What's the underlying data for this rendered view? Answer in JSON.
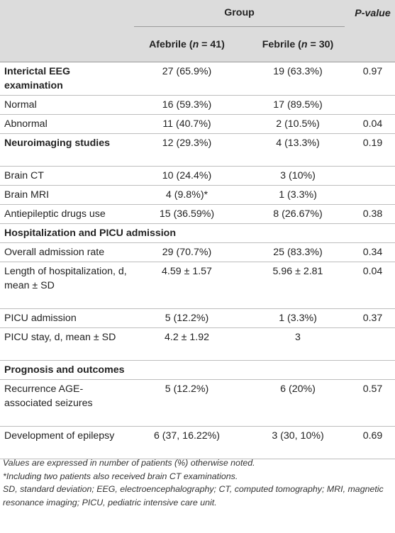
{
  "header": {
    "group": "Group",
    "pvalue": "P-value",
    "afebrile_pre": "Afebrile (",
    "afebrile_n": "n",
    "afebrile_post": " = 41)",
    "febrile_pre": "Febrile (",
    "febrile_n": "n",
    "febrile_post": " = 30)"
  },
  "rows": [
    {
      "label": "Interictal EEG examination",
      "bold": true,
      "afebrile": "27 (65.9%)",
      "febrile": "19 (63.3%)",
      "p": "0.97",
      "h": 46
    },
    {
      "label": "Normal",
      "bold": false,
      "afebrile": "16 (59.3%)",
      "febrile": "17 (89.5%)",
      "p": "",
      "h": 26
    },
    {
      "label": "Abnormal",
      "bold": false,
      "afebrile": "11 (40.7%)",
      "febrile": "2 (10.5%)",
      "p": "0.04",
      "h": 26
    },
    {
      "label": "Neuroimaging studies",
      "bold": true,
      "afebrile": "12 (29.3%)",
      "febrile": "4 (13.3%)",
      "p": "0.19",
      "h": 46
    },
    {
      "label": "Brain CT",
      "bold": false,
      "afebrile": "10 (24.4%)",
      "febrile": "3 (10%)",
      "p": "",
      "h": 26
    },
    {
      "label": "Brain MRI",
      "bold": false,
      "afebrile": "4 (9.8%)*",
      "febrile": "1 (3.3%)",
      "p": "",
      "h": 26
    },
    {
      "label": "Antiepileptic drugs use",
      "bold": false,
      "afebrile": "15 (36.59%)",
      "febrile": "8 (26.67%)",
      "p": "0.38",
      "h": 26
    },
    {
      "label": "Hospitalization and PICU admission",
      "bold": true,
      "section": true,
      "h": 26
    },
    {
      "label": "Overall admission rate",
      "bold": false,
      "afebrile": "29 (70.7%)",
      "febrile": "25 (83.3%)",
      "p": "0.34",
      "h": 26
    },
    {
      "label": "Length of hospitalization, d, mean ± SD",
      "bold": false,
      "afebrile": "4.59 ± 1.57",
      "febrile": "5.96 ± 2.81",
      "p": "0.04",
      "h": 66
    },
    {
      "label": "PICU admission",
      "bold": false,
      "afebrile": "5 (12.2%)",
      "febrile": "1 (3.3%)",
      "p": "0.37",
      "h": 26
    },
    {
      "label": "PICU stay, d, mean ± SD",
      "bold": false,
      "afebrile": "4.2 ± 1.92",
      "febrile": "3",
      "p": "",
      "h": 46
    },
    {
      "label": "Prognosis and outcomes",
      "bold": true,
      "section": true,
      "h": 26
    },
    {
      "label": "Recurrence AGE-associated seizures",
      "bold": false,
      "afebrile": "5 (12.2%)",
      "febrile": "6 (20%)",
      "p": "0.57",
      "h": 66
    },
    {
      "label": "Development of epilepsy",
      "bold": false,
      "afebrile": "6 (37, 16.22%)",
      "febrile": "3 (30, 10%)",
      "p": "0.69",
      "h": 46
    }
  ],
  "footnotes": [
    "Values are expressed in number of patients (%) otherwise noted.",
    "*Including two patients also received brain CT examinations.",
    "SD, standard deviation; EEG, electroencephalography; CT, computed tomography; MRI, magnetic resonance imaging; PICU, pediatric intensive care unit."
  ]
}
